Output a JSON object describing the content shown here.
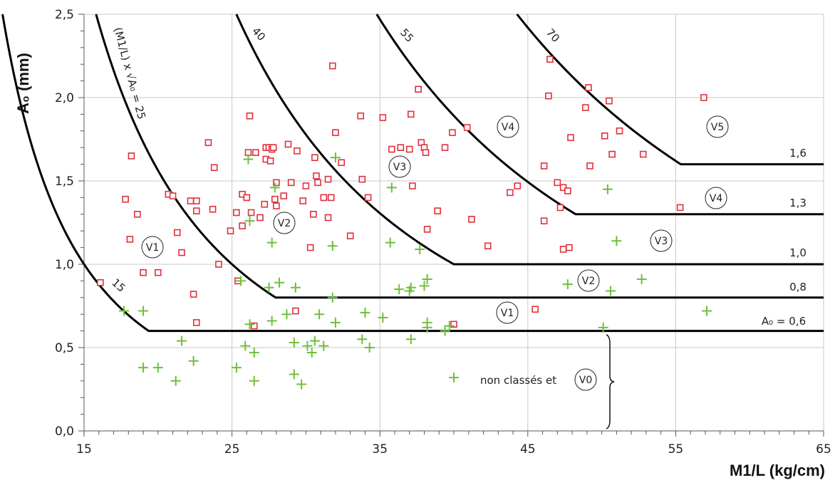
{
  "chart_data": {
    "type": "scatter",
    "title": "",
    "xlabel": "M1/L (kg/cm)",
    "ylabel": "A₀ (mm)",
    "xlim": [
      15,
      65
    ],
    "ylim": [
      0.0,
      2.5
    ],
    "xticks": [
      "15",
      "25",
      "35",
      "45",
      "55",
      "65"
    ],
    "yticks": [
      "0,0",
      "0,5",
      "1,0",
      "1,5",
      "2,0",
      "2,5"
    ],
    "grid": true,
    "colors": {
      "classed": "#e0303c",
      "unclassed": "#6fbf3a",
      "curves": "#000000",
      "grid": "#c8c8c8"
    },
    "series": [
      {
        "marker": "square",
        "points": [
          [
            16.1,
            0.89
          ],
          [
            17.8,
            1.39
          ],
          [
            18.1,
            1.15
          ],
          [
            18.2,
            1.65
          ],
          [
            18.6,
            1.3
          ],
          [
            19.0,
            0.95
          ],
          [
            20.0,
            0.95
          ],
          [
            20.7,
            1.42
          ],
          [
            21.0,
            1.41
          ],
          [
            21.3,
            1.19
          ],
          [
            21.6,
            1.07
          ],
          [
            22.2,
            1.38
          ],
          [
            22.4,
            0.82
          ],
          [
            22.6,
            1.38
          ],
          [
            22.6,
            1.32
          ],
          [
            22.6,
            0.65
          ],
          [
            23.4,
            1.73
          ],
          [
            23.7,
            1.33
          ],
          [
            23.8,
            1.58
          ],
          [
            24.1,
            1.0
          ],
          [
            24.9,
            1.2
          ],
          [
            25.3,
            1.31
          ],
          [
            25.4,
            0.9
          ],
          [
            25.7,
            1.42
          ],
          [
            25.7,
            1.23
          ],
          [
            26.0,
            1.4
          ],
          [
            26.1,
            1.67
          ],
          [
            26.2,
            1.89
          ],
          [
            26.3,
            1.31
          ],
          [
            26.5,
            0.63
          ],
          [
            26.6,
            1.67
          ],
          [
            26.9,
            1.28
          ],
          [
            27.2,
            1.36
          ],
          [
            27.3,
            1.7
          ],
          [
            27.3,
            1.63
          ],
          [
            27.5,
            1.7
          ],
          [
            27.6,
            1.62
          ],
          [
            27.7,
            1.69
          ],
          [
            27.8,
            1.7
          ],
          [
            27.9,
            1.39
          ],
          [
            28.0,
            1.35
          ],
          [
            28.0,
            1.49
          ],
          [
            28.5,
            1.41
          ],
          [
            28.8,
            1.72
          ],
          [
            29.0,
            1.49
          ],
          [
            29.3,
            0.72
          ],
          [
            29.4,
            1.68
          ],
          [
            29.8,
            1.38
          ],
          [
            30.0,
            1.47
          ],
          [
            30.3,
            1.1
          ],
          [
            30.5,
            1.3
          ],
          [
            30.6,
            1.64
          ],
          [
            30.7,
            1.53
          ],
          [
            30.8,
            1.49
          ],
          [
            31.2,
            1.4
          ],
          [
            31.5,
            1.51
          ],
          [
            31.5,
            1.28
          ],
          [
            31.7,
            1.4
          ],
          [
            31.8,
            2.19
          ],
          [
            32.0,
            1.79
          ],
          [
            32.4,
            1.61
          ],
          [
            33.0,
            1.17
          ],
          [
            33.7,
            1.89
          ],
          [
            33.8,
            1.51
          ],
          [
            34.2,
            1.4
          ],
          [
            35.2,
            1.88
          ],
          [
            35.8,
            1.69
          ],
          [
            36.4,
            1.7
          ],
          [
            37.0,
            1.69
          ],
          [
            37.1,
            1.9
          ],
          [
            37.2,
            1.47
          ],
          [
            37.6,
            2.05
          ],
          [
            37.8,
            1.73
          ],
          [
            38.0,
            1.7
          ],
          [
            38.1,
            1.67
          ],
          [
            38.2,
            1.21
          ],
          [
            38.9,
            1.32
          ],
          [
            39.4,
            1.7
          ],
          [
            39.9,
            1.79
          ],
          [
            40.0,
            0.64
          ],
          [
            40.9,
            1.82
          ],
          [
            41.2,
            1.27
          ],
          [
            42.3,
            1.11
          ],
          [
            43.8,
            1.43
          ],
          [
            44.3,
            1.47
          ],
          [
            45.5,
            0.73
          ],
          [
            46.1,
            1.59
          ],
          [
            46.1,
            1.26
          ],
          [
            46.4,
            2.01
          ],
          [
            46.5,
            2.23
          ],
          [
            47.0,
            1.49
          ],
          [
            47.2,
            1.34
          ],
          [
            47.4,
            1.46
          ],
          [
            47.4,
            1.09
          ],
          [
            47.7,
            1.44
          ],
          [
            47.8,
            1.1
          ],
          [
            47.9,
            1.76
          ],
          [
            48.9,
            1.94
          ],
          [
            49.1,
            2.06
          ],
          [
            49.2,
            1.59
          ],
          [
            50.2,
            1.77
          ],
          [
            50.5,
            1.98
          ],
          [
            50.7,
            1.66
          ],
          [
            51.2,
            1.8
          ],
          [
            52.8,
            1.66
          ],
          [
            55.3,
            1.34
          ],
          [
            56.9,
            2.0
          ]
        ]
      },
      {
        "marker": "plus",
        "points": [
          [
            17.7,
            0.72
          ],
          [
            19.0,
            0.38
          ],
          [
            19.0,
            0.72
          ],
          [
            20.0,
            0.38
          ],
          [
            21.2,
            0.3
          ],
          [
            21.6,
            0.54
          ],
          [
            22.4,
            0.42
          ],
          [
            25.3,
            0.38
          ],
          [
            25.6,
            0.9
          ],
          [
            25.9,
            0.51
          ],
          [
            26.1,
            1.63
          ],
          [
            26.2,
            1.26
          ],
          [
            26.2,
            0.64
          ],
          [
            26.5,
            0.47
          ],
          [
            26.5,
            0.3
          ],
          [
            27.5,
            0.86
          ],
          [
            27.7,
            0.66
          ],
          [
            27.7,
            1.13
          ],
          [
            27.9,
            1.46
          ],
          [
            28.2,
            0.89
          ],
          [
            28.7,
            0.7
          ],
          [
            29.2,
            0.34
          ],
          [
            29.2,
            0.53
          ],
          [
            29.3,
            0.86
          ],
          [
            29.7,
            0.28
          ],
          [
            30.1,
            0.51
          ],
          [
            30.4,
            0.47
          ],
          [
            30.6,
            0.54
          ],
          [
            30.9,
            0.7
          ],
          [
            31.2,
            0.51
          ],
          [
            31.8,
            1.11
          ],
          [
            31.8,
            0.8
          ],
          [
            32.0,
            1.64
          ],
          [
            32.0,
            0.65
          ],
          [
            33.8,
            0.55
          ],
          [
            34.0,
            0.71
          ],
          [
            34.3,
            0.5
          ],
          [
            35.2,
            0.68
          ],
          [
            35.7,
            1.13
          ],
          [
            35.8,
            1.46
          ],
          [
            36.3,
            0.85
          ],
          [
            37.0,
            0.84
          ],
          [
            37.1,
            0.86
          ],
          [
            37.1,
            0.55
          ],
          [
            37.7,
            1.09
          ],
          [
            38.0,
            0.87
          ],
          [
            38.2,
            0.91
          ],
          [
            38.2,
            0.65
          ],
          [
            38.2,
            0.62
          ],
          [
            39.4,
            0.6
          ],
          [
            39.7,
            0.63
          ],
          [
            40.0,
            0.32
          ],
          [
            47.7,
            0.88
          ],
          [
            50.1,
            0.62
          ],
          [
            50.4,
            1.45
          ],
          [
            50.6,
            0.84
          ],
          [
            51.0,
            1.14
          ],
          [
            52.7,
            0.91
          ],
          [
            57.1,
            0.72
          ]
        ]
      }
    ],
    "curve_labels": [
      "(M1/L) x √A₀ = 25",
      "40",
      "55",
      "70",
      "15"
    ],
    "level_labels": [
      "1,6",
      "1,3",
      "1,0",
      "0,8",
      "A₀ = 0,6"
    ],
    "class_labels": [
      "V1",
      "V2",
      "V3",
      "V4",
      "V5",
      "V4",
      "V3",
      "V2",
      "V1",
      "V0"
    ],
    "annotation": "non classés et"
  }
}
